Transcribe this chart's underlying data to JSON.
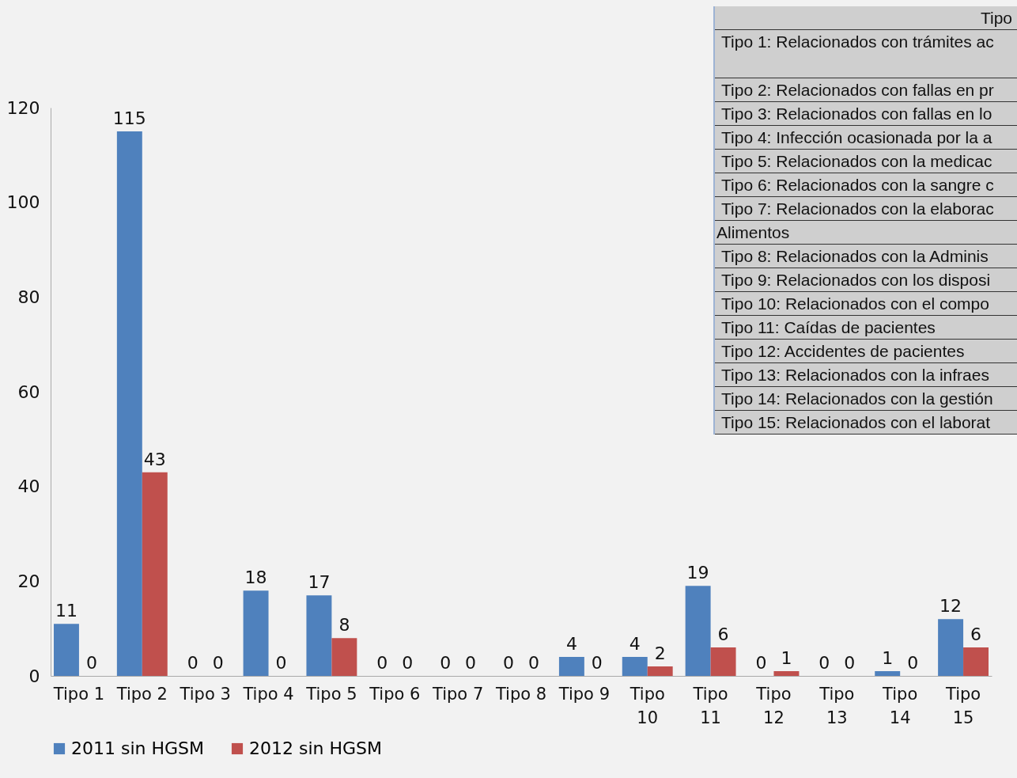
{
  "chart_data": {
    "type": "bar",
    "categories": [
      "Tipo 1",
      "Tipo 2",
      "Tipo 3",
      "Tipo 4",
      "Tipo 5",
      "Tipo 6",
      "Tipo 7",
      "Tipo 8",
      "Tipo 9",
      "Tipo 10",
      "Tipo 11",
      "Tipo 12",
      "Tipo 13",
      "Tipo 14",
      "Tipo 15"
    ],
    "series": [
      {
        "name": "2011 sin HGSM",
        "color": "#4f81bd",
        "values": [
          11,
          115,
          0,
          18,
          17,
          0,
          0,
          0,
          4,
          4,
          19,
          0,
          0,
          1,
          12
        ]
      },
      {
        "name": "2012 sin HGSM",
        "color": "#c0504d",
        "values": [
          0,
          43,
          0,
          0,
          8,
          0,
          0,
          0,
          0,
          2,
          6,
          1,
          0,
          0,
          6
        ]
      }
    ],
    "ylim": [
      0,
      120
    ],
    "yticks": [
      0,
      20,
      40,
      60,
      80,
      100,
      120
    ],
    "grid": false,
    "legend": "bottom",
    "data_labels": true,
    "annotations": [
      "Tipo",
      "Tipo 1: Relacionados con trámites ac",
      "Tipo 2: Relacionados con fallas en pr",
      "Tipo 3: Relacionados con fallas en lo",
      "Tipo 4: Infección ocasionada por la a",
      "Tipo 5: Relacionados con la medicac",
      "Tipo 6: Relacionados con la sangre c",
      "Tipo 7: Relacionados con la elaborac",
      "Alimentos",
      "Tipo 8: Relacionados con la Adminis",
      "Tipo 9: Relacionados con los disposi",
      "Tipo 10: Relacionados con el compo",
      "Tipo 11: Caídas de pacientes",
      "Tipo 12: Accidentes de pacientes",
      "Tipo 13: Relacionados con la infraes",
      "Tipo 14: Relacionados con la gestión",
      "Tipo 15: Relacionados con el laborat"
    ]
  }
}
